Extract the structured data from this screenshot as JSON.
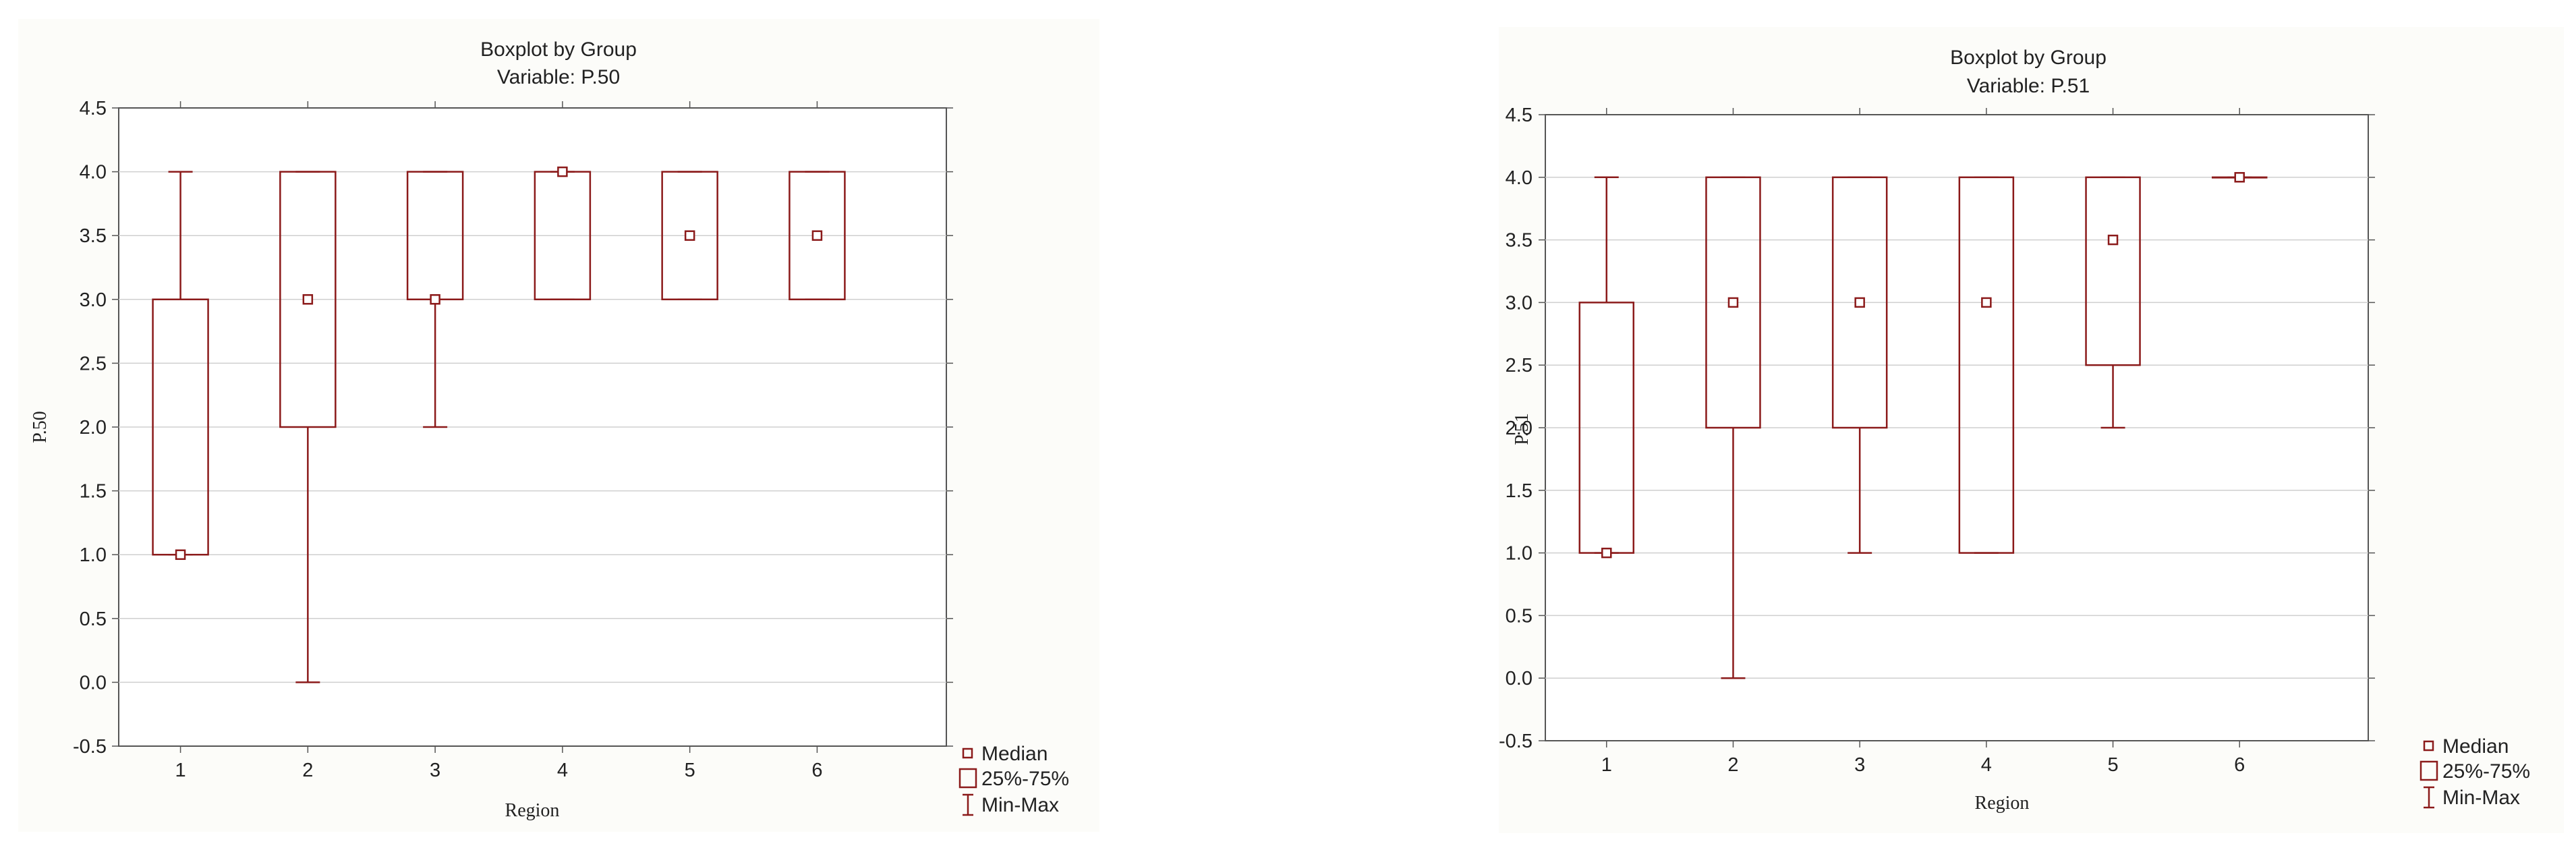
{
  "chart_data": [
    {
      "type": "boxplot",
      "title": "Boxplot by Group",
      "subtitle": "Variable: P.50",
      "xlabel": "Region",
      "ylabel": "P.50",
      "ylim": [
        -0.5,
        4.5
      ],
      "yticks": [
        "-0.5",
        "0.0",
        "0.5",
        "1.0",
        "1.5",
        "2.0",
        "2.5",
        "3.0",
        "3.5",
        "4.0",
        "4.5"
      ],
      "categories": [
        "1",
        "2",
        "3",
        "4",
        "5",
        "6"
      ],
      "color": "#8b1a1a",
      "grid": true,
      "boxes": [
        {
          "min": 1.0,
          "q1": 1.0,
          "median": 1.0,
          "q3": 3.0,
          "max": 4.0
        },
        {
          "min": 0.0,
          "q1": 2.0,
          "median": 3.0,
          "q3": 4.0,
          "max": 4.0
        },
        {
          "min": 2.0,
          "q1": 3.0,
          "median": 3.0,
          "q3": 4.0,
          "max": 4.0
        },
        {
          "min": 3.0,
          "q1": 3.0,
          "median": 4.0,
          "q3": 4.0,
          "max": 4.0
        },
        {
          "min": 3.0,
          "q1": 3.0,
          "median": 3.5,
          "q3": 4.0,
          "max": 4.0
        },
        {
          "min": 3.0,
          "q1": 3.0,
          "median": 3.5,
          "q3": 4.0,
          "max": 4.0
        }
      ],
      "legend": [
        "Median",
        "25%-75%",
        "Min-Max"
      ],
      "legend_position": "bottom-right"
    },
    {
      "type": "boxplot",
      "title": "Boxplot by Group",
      "subtitle": "Variable: P.51",
      "xlabel": "Region",
      "ylabel": "P.51",
      "ylim": [
        -0.5,
        4.5
      ],
      "yticks": [
        "-0.5",
        "0.0",
        "0.5",
        "1.0",
        "1.5",
        "2.0",
        "2.5",
        "3.0",
        "3.5",
        "4.0",
        "4.5"
      ],
      "categories": [
        "1",
        "2",
        "3",
        "4",
        "5",
        "6"
      ],
      "color": "#8b1a1a",
      "grid": true,
      "boxes": [
        {
          "min": 1.0,
          "q1": 1.0,
          "median": 1.0,
          "q3": 3.0,
          "max": 4.0
        },
        {
          "min": 0.0,
          "q1": 2.0,
          "median": 3.0,
          "q3": 4.0,
          "max": 4.0
        },
        {
          "min": 1.0,
          "q1": 2.0,
          "median": 3.0,
          "q3": 4.0,
          "max": 4.0
        },
        {
          "min": 1.0,
          "q1": 1.0,
          "median": 3.0,
          "q3": 4.0,
          "max": 4.0
        },
        {
          "min": 2.0,
          "q1": 2.5,
          "median": 3.5,
          "q3": 4.0,
          "max": 4.0
        },
        {
          "min": 4.0,
          "q1": 4.0,
          "median": 4.0,
          "q3": 4.0,
          "max": 4.0
        }
      ],
      "legend": [
        "Median",
        "25%-75%",
        "Min-Max"
      ],
      "legend_position": "bottom-right"
    }
  ]
}
